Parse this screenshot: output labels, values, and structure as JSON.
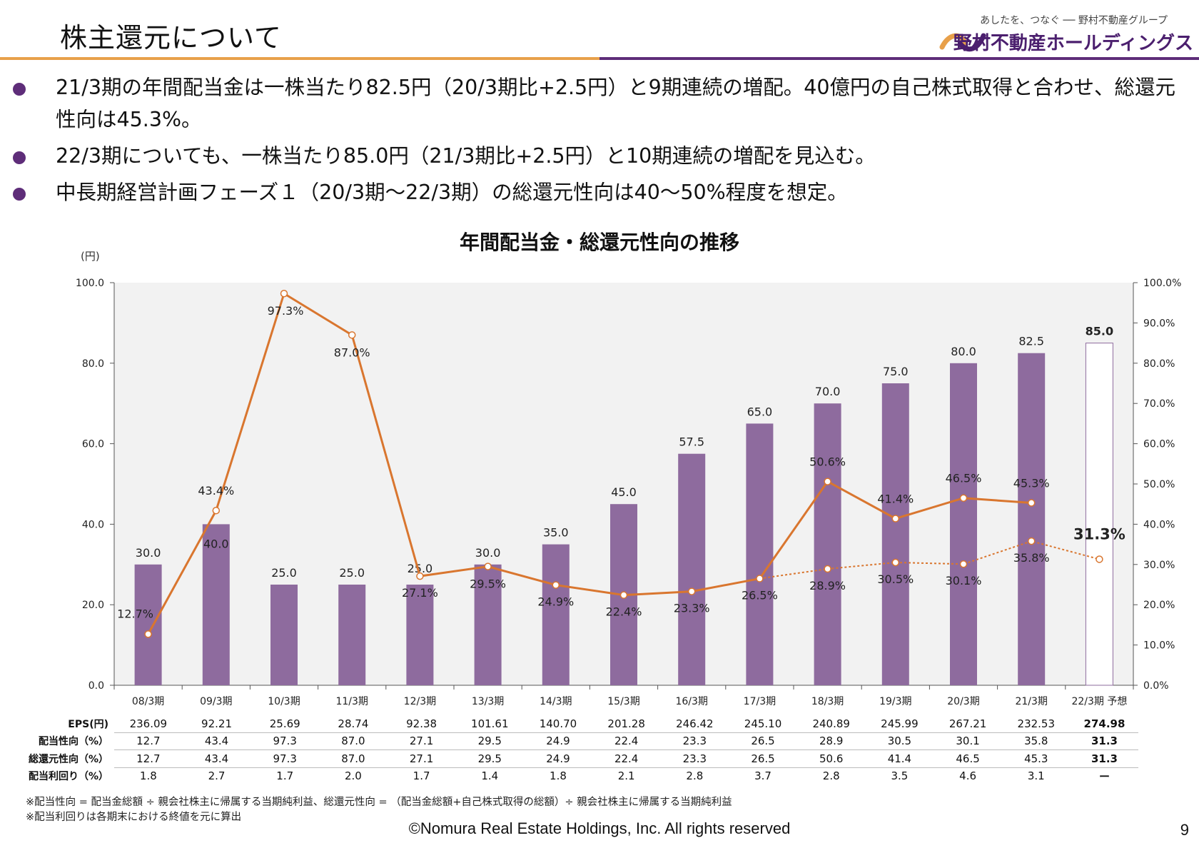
{
  "header": {
    "title": "株主還元について",
    "logo_tagline": "あしたを、つなぐ ── 野村不動産グループ",
    "logo_name": "野村不動産ホールディングス"
  },
  "bullets": [
    "21/3期の年間配当金は一株当たり82.5円（20/3期比+2.5円）と9期連続の増配。40億円の自己株式取得と合わせ、総還元性向は45.3%。",
    "22/3期についても、一株当たり85.0円（21/3期比+2.5円）と10期連続の増配を見込む。",
    "中長期経営計画フェーズ１（20/3期～22/3期）の総還元性向は40～50%程度を想定。"
  ],
  "chart_data": {
    "type": "bar+line",
    "title": "年間配当金・総還元性向の推移",
    "y_unit": "(円)",
    "ylim": [
      0,
      100
    ],
    "ylim_right": [
      0,
      100
    ],
    "y_ticks": [
      "0.0",
      "20.0",
      "40.0",
      "60.0",
      "80.0",
      "100.0"
    ],
    "y2_ticks": [
      "0.0%",
      "10.0%",
      "20.0%",
      "30.0%",
      "40.0%",
      "50.0%",
      "60.0%",
      "70.0%",
      "80.0%",
      "90.0%",
      "100.0%"
    ],
    "categories": [
      "08/3期",
      "09/3期",
      "10/3期",
      "11/3期",
      "12/3期",
      "13/3期",
      "14/3期",
      "15/3期",
      "16/3期",
      "17/3期",
      "18/3期",
      "19/3期",
      "20/3期",
      "21/3期",
      "22/3期 予想"
    ],
    "dividend": {
      "name": "年間配当金",
      "values": [
        30.0,
        40.0,
        25.0,
        25.0,
        25.0,
        30.0,
        35.0,
        45.0,
        57.5,
        65.0,
        70.0,
        75.0,
        80.0,
        82.5,
        85.0
      ],
      "labels": [
        "30.0",
        "40.0",
        "25.0",
        "25.0",
        "25.0",
        "30.0",
        "35.0",
        "45.0",
        "57.5",
        "65.0",
        "70.0",
        "75.0",
        "80.0",
        "82.5",
        "85.0"
      ],
      "color": "#8e6b9e"
    },
    "total_return": {
      "name": "総還元性向",
      "values": [
        12.7,
        43.4,
        97.3,
        87.0,
        27.1,
        29.5,
        24.9,
        22.4,
        23.3,
        26.5,
        50.6,
        41.4,
        46.5,
        45.3
      ],
      "labels": [
        "12.7%",
        "43.4%",
        "97.3%",
        "87.0%",
        "27.1%",
        "29.5%",
        "24.9%",
        "22.4%",
        "23.3%",
        "26.5%",
        "50.6%",
        "41.4%",
        "46.5%",
        "45.3%"
      ],
      "color": "#d9762f"
    },
    "payout_ratio": {
      "name": "配当性向",
      "values": [
        26.5,
        28.9,
        30.5,
        30.1,
        35.8,
        31.3
      ],
      "labels": [
        "",
        "28.9%",
        "30.5%",
        "30.1%",
        "35.8%",
        "31.3%"
      ],
      "start_index": 9,
      "color": "#d9762f"
    }
  },
  "table": {
    "rows": [
      {
        "label": "EPS(円)",
        "values": [
          "236.09",
          "92.21",
          "25.69",
          "28.74",
          "92.38",
          "101.61",
          "140.70",
          "201.28",
          "246.42",
          "245.10",
          "240.89",
          "245.99",
          "267.21",
          "232.53",
          "274.98"
        ]
      },
      {
        "label": "配当性向（%）",
        "values": [
          "12.7",
          "43.4",
          "97.3",
          "87.0",
          "27.1",
          "29.5",
          "24.9",
          "22.4",
          "23.3",
          "26.5",
          "28.9",
          "30.5",
          "30.1",
          "35.8",
          "31.3"
        ]
      },
      {
        "label": "総還元性向（%）",
        "values": [
          "12.7",
          "43.4",
          "97.3",
          "87.0",
          "27.1",
          "29.5",
          "24.9",
          "22.4",
          "23.3",
          "26.5",
          "50.6",
          "41.4",
          "46.5",
          "45.3",
          "31.3"
        ]
      },
      {
        "label": "配当利回り（%）",
        "values": [
          "1.8",
          "2.7",
          "1.7",
          "2.0",
          "1.7",
          "1.4",
          "1.8",
          "2.1",
          "2.8",
          "3.7",
          "2.8",
          "3.5",
          "4.6",
          "3.1",
          "ー"
        ]
      }
    ]
  },
  "notes": [
    "※配当性向 = 配当金総額 ÷ 親会社株主に帰属する当期純利益、総還元性向 = （配当金総額+自己株式取得の総額）÷ 親会社株主に帰属する当期純利益",
    "※配当利回りは各期末における終値を元に算出"
  ],
  "footer": {
    "copyright": "©Nomura Real Estate Holdings, Inc. All rights reserved",
    "page": "9"
  }
}
